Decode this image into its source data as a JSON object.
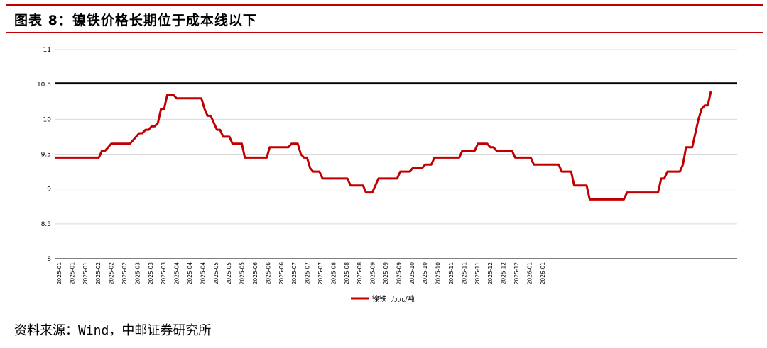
{
  "header": {
    "title": "图表 8：镍铁价格长期位于成本线以下"
  },
  "footer": {
    "source": "资料来源：Wind，中邮证券研究所"
  },
  "colors": {
    "accent_rule": "#c00000",
    "price_series": "#c00000",
    "cost_line": "#000000",
    "grid": "#d9d9d9"
  },
  "chart_data": {
    "type": "line",
    "title": "",
    "xlabel": "",
    "ylabel": "",
    "ylim": [
      8,
      11
    ],
    "yticks": [
      8,
      8.5,
      9,
      9.5,
      10,
      10.5,
      11
    ],
    "grid": "horizontal",
    "legend": "bottom-center",
    "x_tick_labels": [
      "2025-01",
      "2025-01",
      "2025-01",
      "2025-02",
      "2025-02",
      "2025-02",
      "2025-03",
      "2025-03",
      "2025-03",
      "2025-04",
      "2025-04",
      "2025-04",
      "2025-05",
      "2025-05",
      "2025-05",
      "2025-06",
      "2025-06",
      "2025-06",
      "2025-07",
      "2025-07",
      "2025-07",
      "2025-08",
      "2025-08",
      "2025-08",
      "2025-09",
      "2025-09",
      "2025-09",
      "2025-10",
      "2025-10",
      "2025-10",
      "2025-11",
      "2025-11",
      "2025-11",
      "2025-12",
      "2025-12",
      "2025-12",
      "2026-01",
      "2026-01"
    ],
    "reference_line": {
      "value": 10.52
    },
    "series": [
      {
        "name": "镍铁  万元/吨",
        "values": [
          9.45,
          9.45,
          9.45,
          9.45,
          9.45,
          9.45,
          9.45,
          9.45,
          9.45,
          9.45,
          9.45,
          9.45,
          9.45,
          9.45,
          9.45,
          9.55,
          9.55,
          9.6,
          9.65,
          9.65,
          9.65,
          9.65,
          9.65,
          9.65,
          9.65,
          9.7,
          9.75,
          9.8,
          9.8,
          9.85,
          9.85,
          9.9,
          9.9,
          9.95,
          10.15,
          10.15,
          10.35,
          10.35,
          10.35,
          10.3,
          10.3,
          10.3,
          10.3,
          10.3,
          10.3,
          10.3,
          10.3,
          10.3,
          10.15,
          10.05,
          10.05,
          9.95,
          9.85,
          9.85,
          9.75,
          9.75,
          9.75,
          9.65,
          9.65,
          9.65,
          9.65,
          9.45,
          9.45,
          9.45,
          9.45,
          9.45,
          9.45,
          9.45,
          9.45,
          9.6,
          9.6,
          9.6,
          9.6,
          9.6,
          9.6,
          9.6,
          9.65,
          9.65,
          9.65,
          9.5,
          9.45,
          9.45,
          9.3,
          9.25,
          9.25,
          9.25,
          9.15,
          9.15,
          9.15,
          9.15,
          9.15,
          9.15,
          9.15,
          9.15,
          9.15,
          9.05,
          9.05,
          9.05,
          9.05,
          9.05,
          8.95,
          8.95,
          8.95,
          9.05,
          9.15,
          9.15,
          9.15,
          9.15,
          9.15,
          9.15,
          9.15,
          9.25,
          9.25,
          9.25,
          9.25,
          9.3,
          9.3,
          9.3,
          9.3,
          9.35,
          9.35,
          9.35,
          9.45,
          9.45,
          9.45,
          9.45,
          9.45,
          9.45,
          9.45,
          9.45,
          9.45,
          9.55,
          9.55,
          9.55,
          9.55,
          9.55,
          9.65,
          9.65,
          9.65,
          9.65,
          9.6,
          9.6,
          9.55,
          9.55,
          9.55,
          9.55,
          9.55,
          9.55,
          9.45,
          9.45,
          9.45,
          9.45,
          9.45,
          9.45,
          9.35,
          9.35,
          9.35,
          9.35,
          9.35,
          9.35,
          9.35,
          9.35,
          9.35,
          9.25,
          9.25,
          9.25,
          9.25,
          9.05,
          9.05,
          9.05,
          9.05,
          9.05,
          8.85,
          8.85,
          8.85,
          8.85,
          8.85,
          8.85,
          8.85,
          8.85,
          8.85,
          8.85,
          8.85,
          8.85,
          8.95,
          8.95,
          8.95,
          8.95,
          8.95,
          8.95,
          8.95,
          8.95,
          8.95,
          8.95,
          8.95,
          9.15,
          9.15,
          9.25,
          9.25,
          9.25,
          9.25,
          9.25,
          9.35,
          9.6,
          9.6,
          9.6,
          9.8,
          10.0,
          10.15,
          10.2,
          10.2,
          10.4
        ]
      }
    ]
  }
}
